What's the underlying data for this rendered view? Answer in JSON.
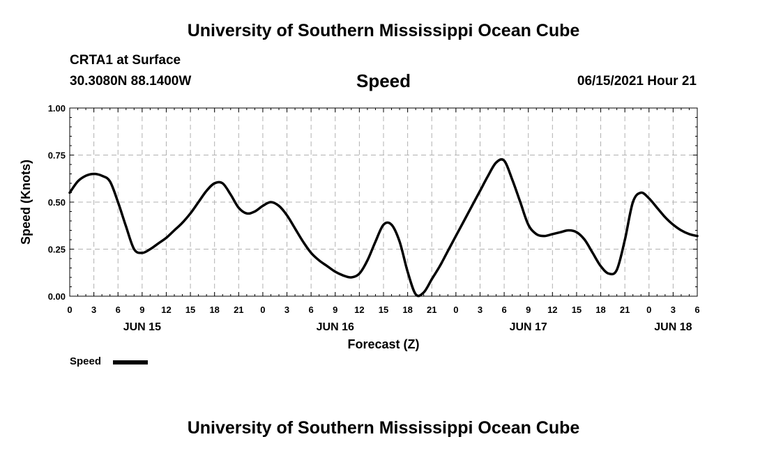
{
  "header": {
    "title_top": "University of Southern Mississippi Ocean Cube",
    "station": "CRTA1 at Surface",
    "coords": "30.3080N  88.1400W",
    "variable": "Speed",
    "datetime": "06/15/2021 Hour 21"
  },
  "footer": {
    "title_bottom": "University of Southern Mississippi Ocean Cube"
  },
  "legend": {
    "label": "Speed",
    "color": "#000000"
  },
  "chart_data": {
    "type": "line",
    "title": "Speed",
    "xlabel": "Forecast (Z)",
    "ylabel": "Speed (Knots)",
    "ylim": [
      0,
      1.0
    ],
    "xlim_hours": [
      0,
      78
    ],
    "x_start": "06/15/2021 00Z",
    "grid": true,
    "ytick_labels": [
      "0.00",
      "0.25",
      "0.50",
      "0.75",
      "1.00"
    ],
    "yticks": [
      0,
      0.25,
      0.5,
      0.75,
      1.0
    ],
    "xtick_hours": [
      0,
      3,
      6,
      9,
      12,
      15,
      18,
      21,
      24,
      27,
      30,
      33,
      36,
      39,
      42,
      45,
      48,
      51,
      54,
      57,
      60,
      63,
      66,
      69,
      72,
      75,
      78
    ],
    "xtick_labels": [
      "0",
      "3",
      "6",
      "9",
      "12",
      "15",
      "18",
      "21",
      "0",
      "3",
      "6",
      "9",
      "12",
      "15",
      "18",
      "21",
      "0",
      "3",
      "6",
      "9",
      "12",
      "15",
      "18",
      "21",
      "0",
      "3",
      "6"
    ],
    "date_labels": [
      {
        "hour": 9,
        "label": "JUN 15"
      },
      {
        "hour": 33,
        "label": "JUN 16"
      },
      {
        "hour": 57,
        "label": "JUN 17"
      },
      {
        "hour": 75,
        "label": "JUN 18"
      }
    ],
    "series": [
      {
        "name": "Speed",
        "color": "#000000",
        "x": [
          0,
          1,
          2,
          3,
          4,
          5,
          6,
          7,
          8,
          9,
          10,
          11,
          12,
          13,
          14,
          15,
          16,
          17,
          18,
          19,
          20,
          21,
          22,
          23,
          24,
          25,
          26,
          27,
          28,
          29,
          30,
          31,
          32,
          33,
          34,
          35,
          36,
          37,
          38,
          39,
          40,
          41,
          42,
          43,
          44,
          45,
          46,
          47,
          48,
          49,
          50,
          51,
          52,
          53,
          54,
          55,
          56,
          57,
          58,
          59,
          60,
          61,
          62,
          63,
          64,
          65,
          66,
          67,
          68,
          69,
          70,
          71,
          72,
          73,
          74,
          75,
          76,
          77,
          78
        ],
        "values": [
          0.55,
          0.61,
          0.64,
          0.65,
          0.64,
          0.61,
          0.5,
          0.37,
          0.25,
          0.23,
          0.25,
          0.28,
          0.31,
          0.35,
          0.39,
          0.44,
          0.5,
          0.56,
          0.6,
          0.6,
          0.54,
          0.47,
          0.44,
          0.45,
          0.48,
          0.5,
          0.48,
          0.43,
          0.36,
          0.29,
          0.23,
          0.19,
          0.16,
          0.13,
          0.11,
          0.1,
          0.12,
          0.19,
          0.29,
          0.38,
          0.38,
          0.29,
          0.13,
          0.01,
          0.02,
          0.09,
          0.16,
          0.24,
          0.32,
          0.4,
          0.48,
          0.56,
          0.64,
          0.71,
          0.72,
          0.62,
          0.5,
          0.38,
          0.33,
          0.32,
          0.33,
          0.34,
          0.35,
          0.34,
          0.3,
          0.23,
          0.16,
          0.12,
          0.14,
          0.3,
          0.5,
          0.55,
          0.52,
          0.47,
          0.42,
          0.38,
          0.35,
          0.33,
          0.32
        ]
      }
    ]
  }
}
